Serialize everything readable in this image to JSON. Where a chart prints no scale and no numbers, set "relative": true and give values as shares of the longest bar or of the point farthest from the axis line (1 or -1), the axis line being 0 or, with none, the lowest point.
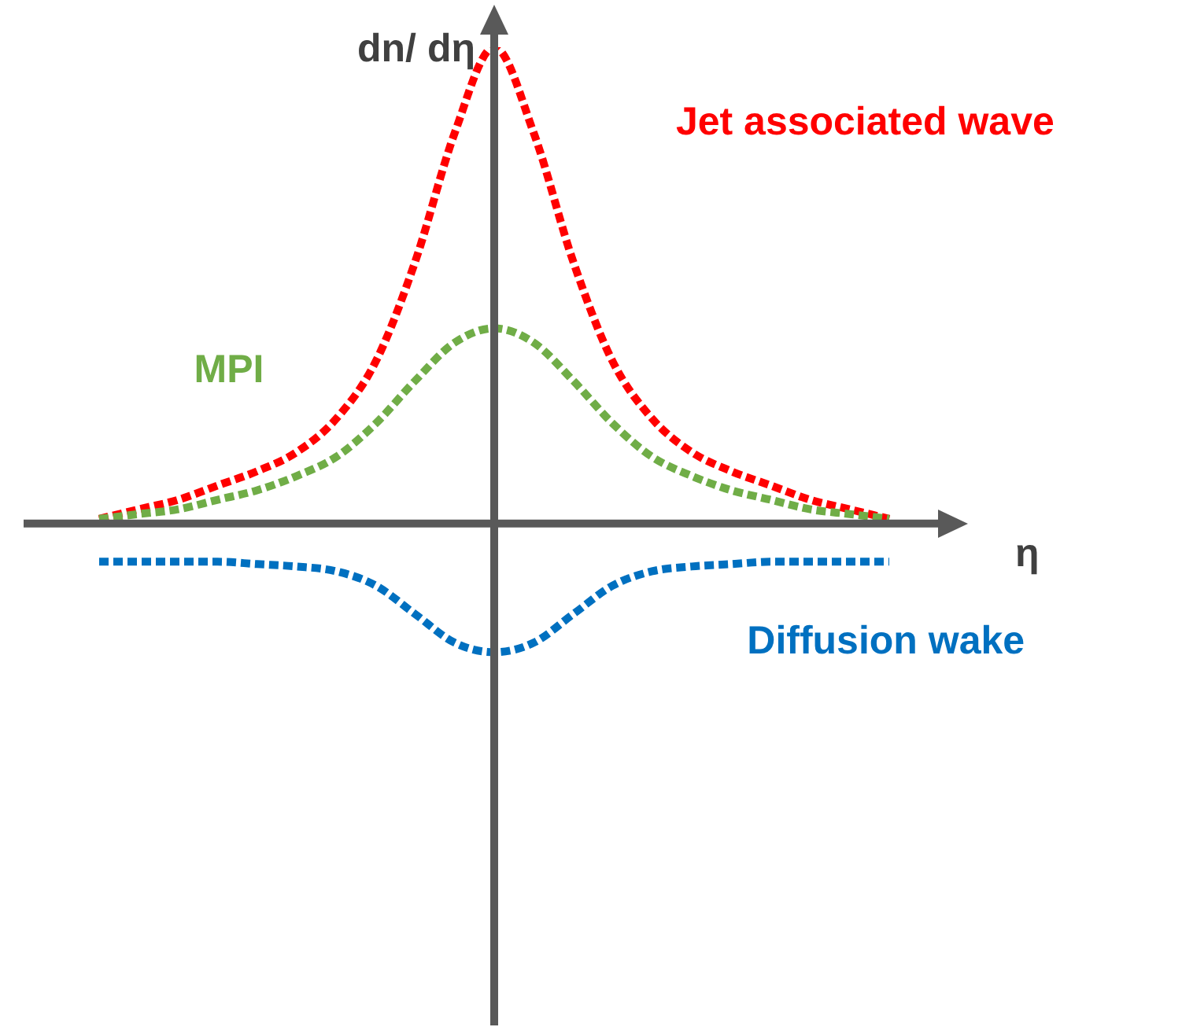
{
  "chart_data": {
    "type": "line",
    "relative": true,
    "xlabel": "η",
    "ylabel": "dn/ dη",
    "categories": [
      null,
      null,
      null,
      null,
      null,
      null,
      null,
      null,
      null,
      null,
      null,
      null,
      null,
      null,
      null,
      null,
      null,
      null,
      null,
      null,
      null
    ],
    "series": [
      {
        "name": "Jet associated wave",
        "color": "#ff0000",
        "values": [
          0.01,
          0.03,
          0.05,
          0.08,
          0.11,
          0.15,
          0.22,
          0.34,
          0.55,
          0.82,
          1,
          0.82,
          0.55,
          0.34,
          0.22,
          0.15,
          0.11,
          0.08,
          0.05,
          0.03,
          0.01
        ]
      },
      {
        "name": "MPI",
        "color": "#70ad47",
        "values": [
          0.01,
          0.02,
          0.03,
          0.05,
          0.07,
          0.1,
          0.14,
          0.21,
          0.3,
          0.38,
          0.41,
          0.38,
          0.3,
          0.21,
          0.14,
          0.1,
          0.07,
          0.05,
          0.03,
          0.02,
          0.01
        ]
      },
      {
        "name": "Diffusion wake",
        "color": "#0070c0",
        "values": [
          -0.08,
          -0.08,
          -0.08,
          -0.08,
          -0.085,
          -0.09,
          -0.1,
          -0.13,
          -0.19,
          -0.25,
          -0.27,
          -0.25,
          -0.19,
          -0.13,
          -0.1,
          -0.09,
          -0.085,
          -0.08,
          -0.08,
          -0.08,
          -0.08
        ]
      }
    ],
    "legend": false,
    "marker": "none",
    "line_style": "dotted"
  }
}
